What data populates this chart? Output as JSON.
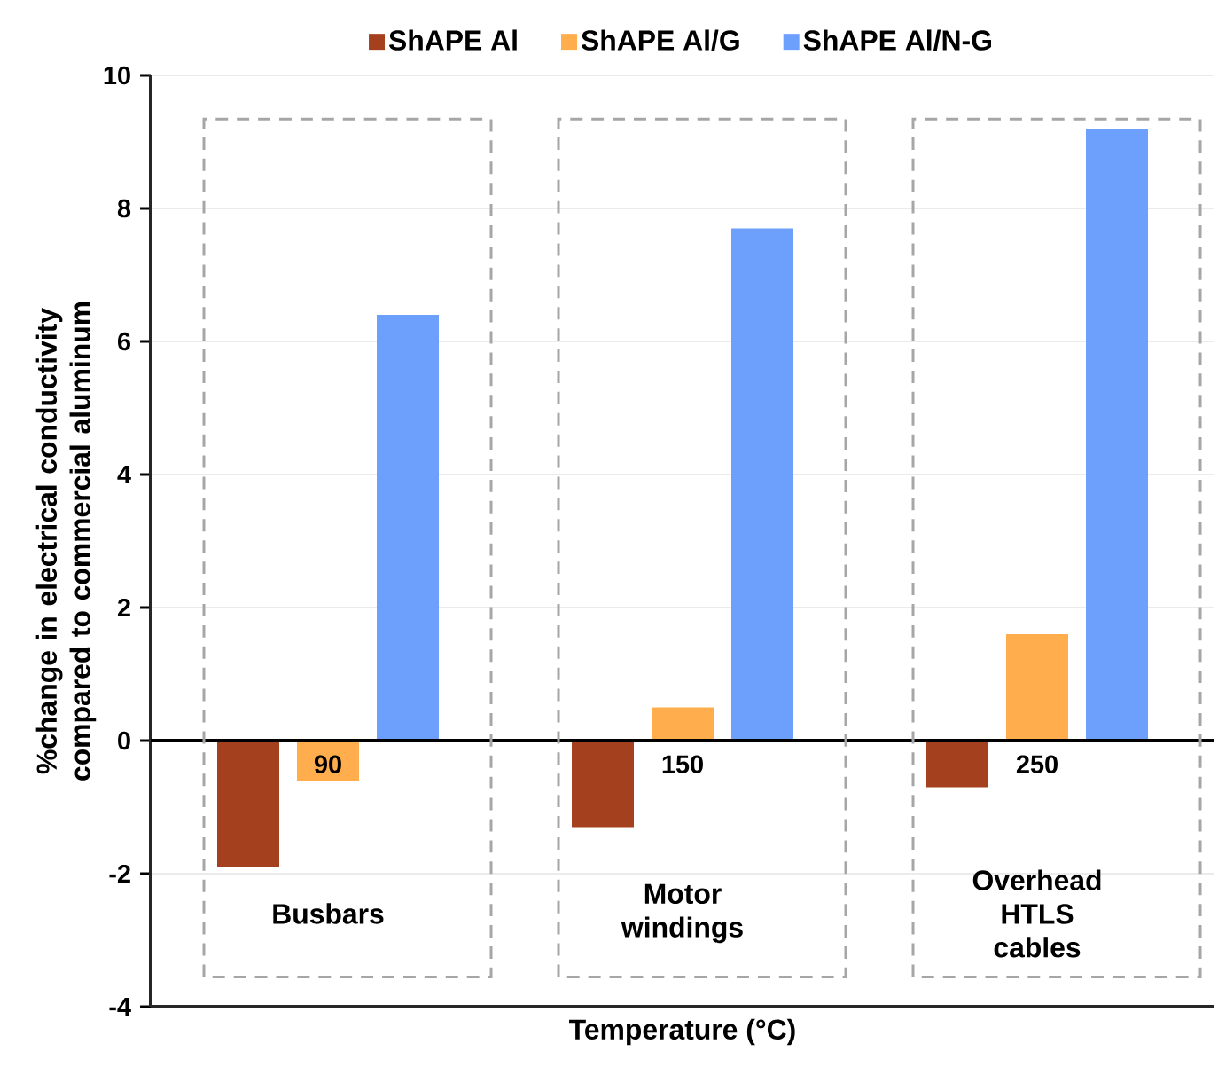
{
  "chart_data": {
    "type": "bar",
    "xlabel": "Temperature (°C)",
    "ylabel": "%change in electrical conductivity compared to commercial aluminum",
    "categories": [
      "90",
      "150",
      "250"
    ],
    "series": [
      {
        "name": "ShAPE Al",
        "color": "#a5401e",
        "values": [
          -1.9,
          -1.3,
          -0.7
        ]
      },
      {
        "name": "ShAPE Al/G",
        "color": "#ffad4d",
        "values": [
          -0.6,
          0.5,
          1.6
        ]
      },
      {
        "name": "ShAPE Al/N-G",
        "color": "#6ca0fc",
        "values": [
          6.4,
          7.7,
          9.2
        ]
      }
    ],
    "ylim": [
      -4,
      10
    ],
    "yticks": [
      -4,
      -2,
      0,
      2,
      4,
      6,
      8,
      10
    ],
    "grid": "y",
    "legend": "top",
    "annotations": [
      "Busbars",
      "Motor windings",
      "Overhead HTLS cables"
    ]
  }
}
